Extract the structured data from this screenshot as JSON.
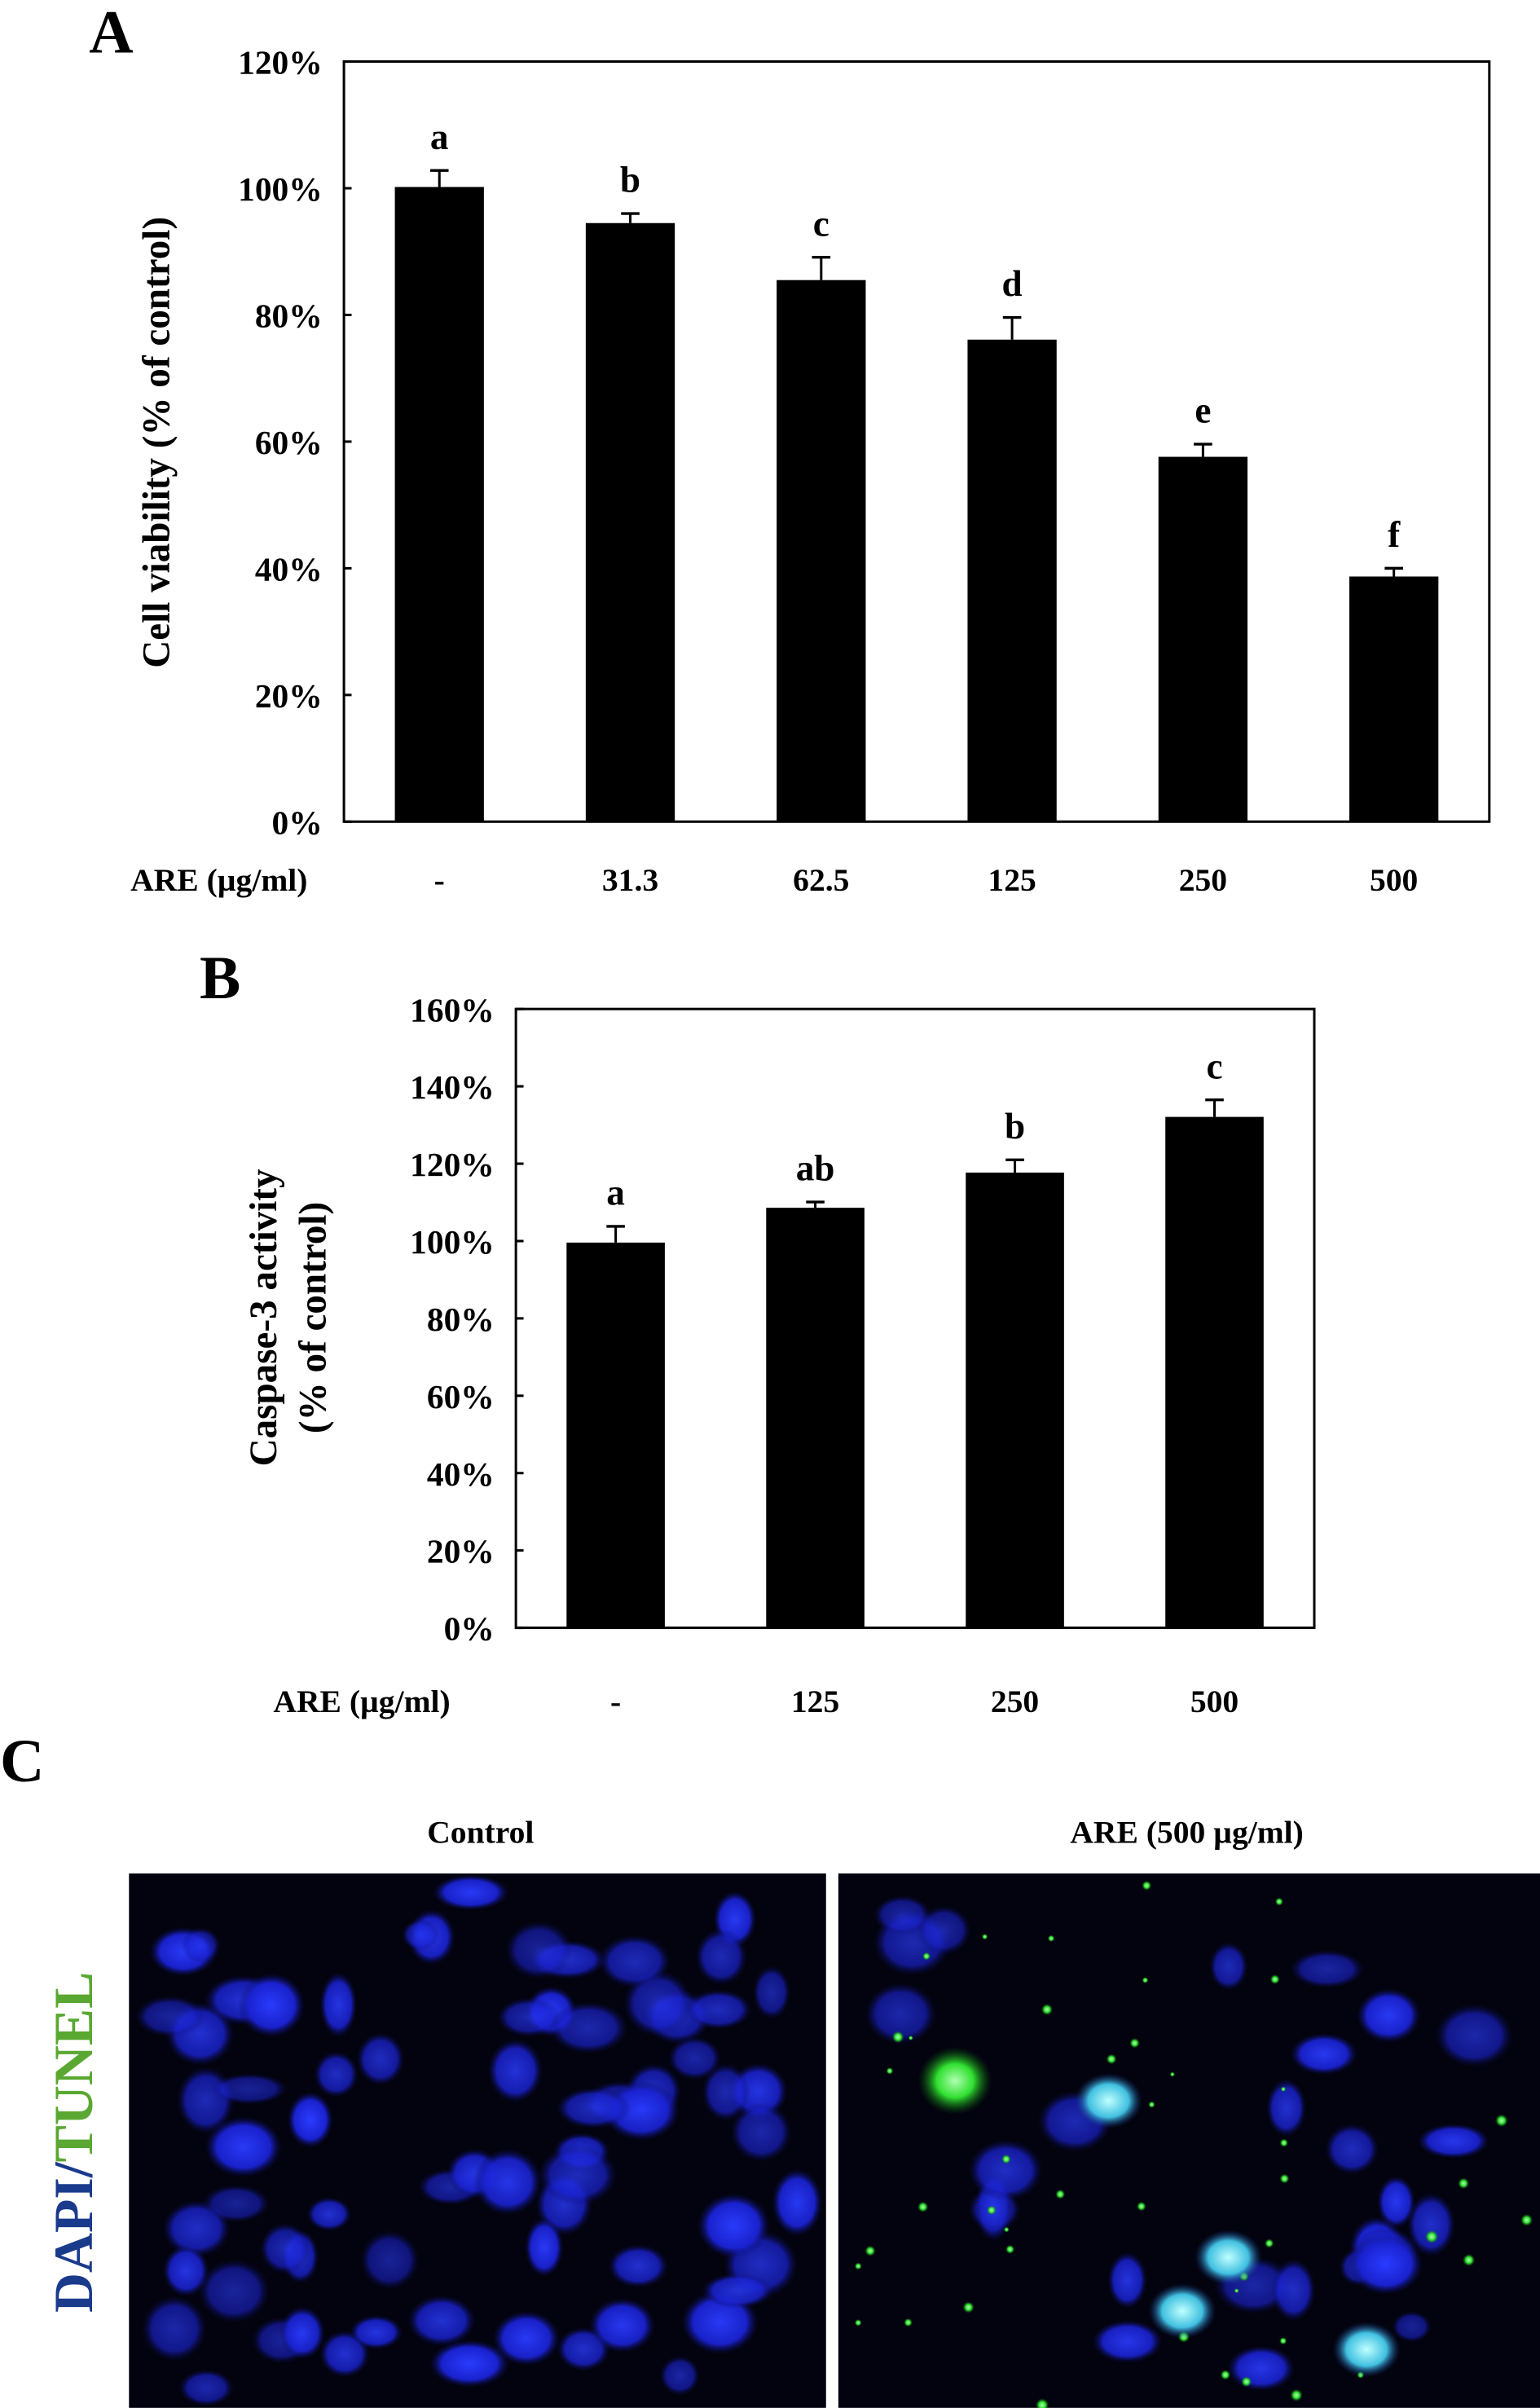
{
  "chart_data": [
    {
      "panel_label": "A",
      "type": "bar",
      "ylabel": "Cell viability (% of control)",
      "xlabel": "ARE (µg/ml)",
      "categories": [
        "-",
        "31.3",
        "62.5",
        "125",
        "250",
        "500"
      ],
      "values": [
        100.2,
        94.5,
        85.5,
        76.1,
        57.6,
        38.7
      ],
      "errors": [
        2.6,
        1.5,
        3.6,
        3.5,
        2.0,
        1.3
      ],
      "significance_letters": [
        "a",
        "b",
        "c",
        "d",
        "e",
        "f"
      ],
      "ylim": [
        0,
        120
      ],
      "yticks": [
        "0%",
        "20%",
        "40%",
        "60%",
        "80%",
        "100%",
        "120%"
      ],
      "bar_color": "#000000",
      "grid": false
    },
    {
      "panel_label": "B",
      "type": "bar",
      "ylabel": [
        "Caspase-3 activity",
        "(% of control)"
      ],
      "xlabel": "ARE (µg/ml)",
      "categories": [
        "-",
        "125",
        "250",
        "500"
      ],
      "values": [
        99.6,
        108.6,
        117.7,
        132.1
      ],
      "errors": [
        4.2,
        1.5,
        3.3,
        4.4
      ],
      "significance_letters": [
        "a",
        "ab",
        "b",
        "c"
      ],
      "ylim": [
        0,
        160
      ],
      "yticks": [
        "0%",
        "20%",
        "40%",
        "60%",
        "80%",
        "100%",
        "120%",
        "140%",
        "160%"
      ],
      "bar_color": "#000000",
      "grid": false
    }
  ],
  "panel_c": {
    "panel_label": "C",
    "stain_label_dapi": "DAPI",
    "stain_label_separator": "/",
    "stain_label_tunel": "TUNEL",
    "dapi_color": "#1a3a8c",
    "tunel_color": "#5aa832",
    "images": [
      {
        "title": "Control"
      },
      {
        "title": "ARE (500 µg/ml)"
      }
    ]
  }
}
